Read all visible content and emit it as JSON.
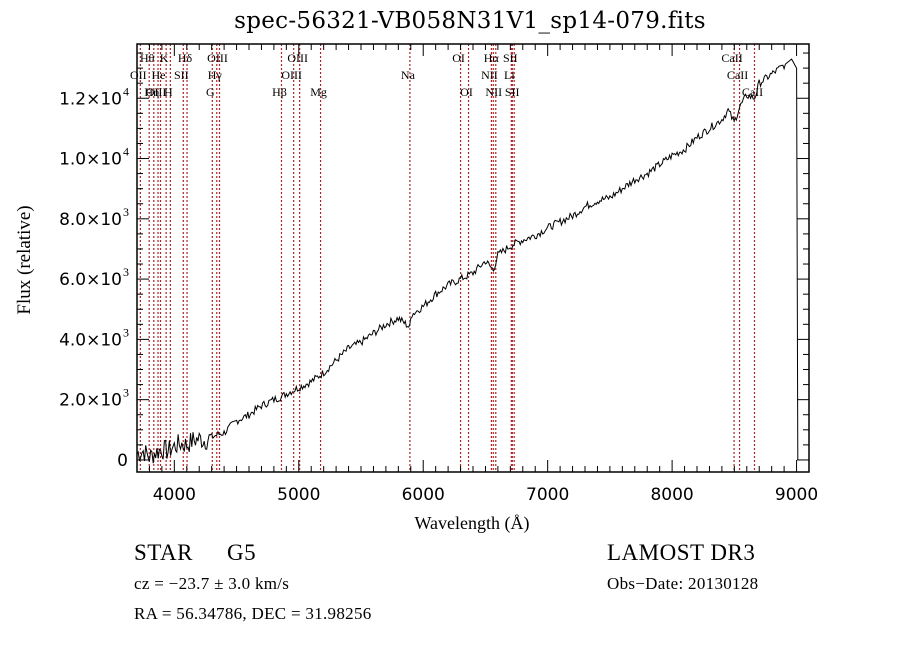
{
  "chart_data": {
    "type": "line",
    "title": "spec-56321-VB058N31V1_sp14-079.fits",
    "xlabel": "Wavelength (Å)",
    "ylabel": "Flux (relative)",
    "xlim": [
      3700,
      9100
    ],
    "ylim": [
      -400,
      13800
    ],
    "grid": false,
    "x_ticks": [
      4000,
      5000,
      6000,
      7000,
      8000,
      9000
    ],
    "x_tick_labels": [
      "4000",
      "5000",
      "6000",
      "7000",
      "8000",
      "9000"
    ],
    "y_ticks": [
      0,
      2000,
      4000,
      6000,
      8000,
      10000,
      12000
    ],
    "y_tick_labels": [
      {
        "mantissa": "0",
        "exp": ""
      },
      {
        "mantissa": "2.0×10",
        "exp": "3"
      },
      {
        "mantissa": "4.0×10",
        "exp": "3"
      },
      {
        "mantissa": "6.0×10",
        "exp": "3"
      },
      {
        "mantissa": "8.0×10",
        "exp": "3"
      },
      {
        "mantissa": "1.0×10",
        "exp": "4"
      },
      {
        "mantissa": "1.2×10",
        "exp": "4"
      }
    ],
    "series": [
      {
        "name": "spectrum",
        "color": "#000000",
        "x": [
          3700,
          3750,
          3800,
          3850,
          3900,
          3950,
          4000,
          4050,
          4100,
          4150,
          4200,
          4250,
          4300,
          4350,
          4400,
          4500,
          4600,
          4700,
          4800,
          4862,
          4900,
          5000,
          5100,
          5200,
          5300,
          5400,
          5500,
          5600,
          5700,
          5800,
          5893,
          5900,
          6000,
          6100,
          6200,
          6300,
          6400,
          6500,
          6563,
          6600,
          6700,
          6800,
          6900,
          7000,
          7100,
          7200,
          7300,
          7400,
          7500,
          7600,
          7700,
          7800,
          7900,
          8000,
          8100,
          8200,
          8300,
          8400,
          8450,
          8498,
          8542,
          8600,
          8662,
          8700,
          8800,
          8900,
          8960,
          9000,
          9010
        ],
        "y": [
          200,
          300,
          100,
          250,
          350,
          300,
          450,
          550,
          500,
          650,
          700,
          650,
          750,
          850,
          900,
          1300,
          1500,
          1800,
          2000,
          2100,
          2200,
          2400,
          2600,
          2900,
          3300,
          3700,
          3900,
          4200,
          4500,
          4700,
          4400,
          4800,
          5100,
          5500,
          5800,
          6000,
          6200,
          6600,
          6300,
          6800,
          7100,
          7300,
          7450,
          7700,
          7900,
          8100,
          8400,
          8600,
          8700,
          9000,
          9300,
          9500,
          9800,
          10100,
          10300,
          10700,
          11000,
          11300,
          11600,
          11200,
          11700,
          12100,
          12000,
          12500,
          12800,
          13100,
          13300,
          13000,
          0
        ]
      }
    ],
    "line_markers": {
      "color": "#b22222",
      "style": "dotted",
      "lines": [
        {
          "label": "Hθ",
          "wavelength": 3798
        },
        {
          "label": "OII",
          "wavelength": 3727
        },
        {
          "label": "OIII",
          "wavelength": 3869
        },
        {
          "label": "Hη",
          "wavelength": 3835
        },
        {
          "label": "K",
          "wavelength": 3934
        },
        {
          "label": "H",
          "wavelength": 3968
        },
        {
          "label": "He",
          "wavelength": 3889
        },
        {
          "label": "Hδ",
          "wavelength": 4102
        },
        {
          "label": "SII",
          "wavelength": 4072
        },
        {
          "label": "OIII",
          "wavelength": 4363
        },
        {
          "label": "Hγ",
          "wavelength": 4341
        },
        {
          "label": "G",
          "wavelength": 4305
        },
        {
          "label": "OIII",
          "wavelength": 5007
        },
        {
          "label": "OIII",
          "wavelength": 4959
        },
        {
          "label": "Hβ",
          "wavelength": 4861
        },
        {
          "label": "Mg",
          "wavelength": 5175
        },
        {
          "label": "Na",
          "wavelength": 5893
        },
        {
          "label": "OI",
          "wavelength": 6300
        },
        {
          "label": "OI",
          "wavelength": 6364
        },
        {
          "label": "Hα",
          "wavelength": 6563
        },
        {
          "label": "NII",
          "wavelength": 6548
        },
        {
          "label": "NII",
          "wavelength": 6583
        },
        {
          "label": "SII",
          "wavelength": 6716
        },
        {
          "label": "Li",
          "wavelength": 6708
        },
        {
          "label": "SII",
          "wavelength": 6731
        },
        {
          "label": "CaII",
          "wavelength": 8498
        },
        {
          "label": "CaII",
          "wavelength": 8542
        },
        {
          "label": "CaII",
          "wavelength": 8662
        }
      ]
    }
  },
  "info": {
    "object_class": "STAR",
    "subclass": "G5",
    "survey": "LAMOST DR3",
    "redshift": "cz = −23.7 ± 3.0 km/s",
    "obs_date": "Obs−Date: 20130128",
    "coords": "RA =  56.34786, DEC =  31.98256"
  }
}
